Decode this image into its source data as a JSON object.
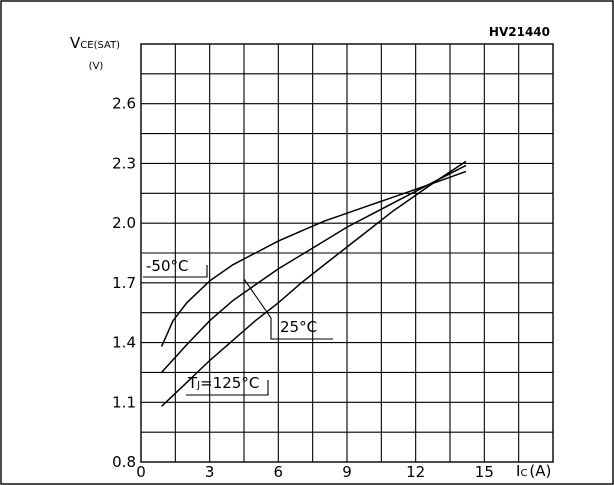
{
  "chart_data": {
    "type": "line",
    "figure_code": "HV21440",
    "ylabel_main": "V",
    "ylabel_sub": "CE(SAT)",
    "yunit": "(V)",
    "xlabel_main": "I",
    "xlabel_sub": "C",
    "xunit": "(A)",
    "xlim": [
      0,
      18
    ],
    "ylim": [
      0.8,
      2.9
    ],
    "x_ticks": [
      0,
      3,
      6,
      9,
      12,
      15
    ],
    "x_tick_labels": [
      "0",
      "3",
      "6",
      "9",
      "12",
      "15"
    ],
    "y_ticks": [
      0.8,
      1.1,
      1.4,
      1.7,
      2.0,
      2.3,
      2.6
    ],
    "y_tick_labels": [
      "0.8",
      "1.1",
      "1.4",
      "1.7",
      "2.0",
      "2.3",
      "2.6"
    ],
    "grid": true,
    "series": [
      {
        "name": "-50°C",
        "x": [
          0.9,
          1.4,
          2.0,
          3.0,
          4.0,
          5.0,
          6.0,
          7.0,
          8.0,
          9.0,
          10.0,
          11.0,
          12.0,
          13.0,
          14.2
        ],
        "y": [
          1.38,
          1.51,
          1.6,
          1.71,
          1.79,
          1.85,
          1.91,
          1.96,
          2.01,
          2.05,
          2.09,
          2.13,
          2.17,
          2.21,
          2.26
        ]
      },
      {
        "name": "25°C",
        "x": [
          0.9,
          2.0,
          3.0,
          4.0,
          5.0,
          6.0,
          7.0,
          8.0,
          9.0,
          10.0,
          11.0,
          12.0,
          13.0,
          14.2
        ],
        "y": [
          1.25,
          1.39,
          1.51,
          1.61,
          1.69,
          1.77,
          1.84,
          1.91,
          1.98,
          2.04,
          2.1,
          2.16,
          2.22,
          2.29
        ]
      },
      {
        "name": "TJ=125°C",
        "label_main": "T",
        "label_sub": "J",
        "label_rest": "=125°C",
        "x": [
          0.9,
          2.0,
          3.0,
          4.0,
          5.0,
          6.0,
          7.0,
          8.0,
          9.0,
          10.0,
          11.0,
          12.0,
          13.0,
          14.2
        ],
        "y": [
          1.08,
          1.2,
          1.31,
          1.41,
          1.51,
          1.6,
          1.7,
          1.79,
          1.88,
          1.97,
          2.06,
          2.14,
          2.22,
          2.31
        ]
      }
    ]
  }
}
